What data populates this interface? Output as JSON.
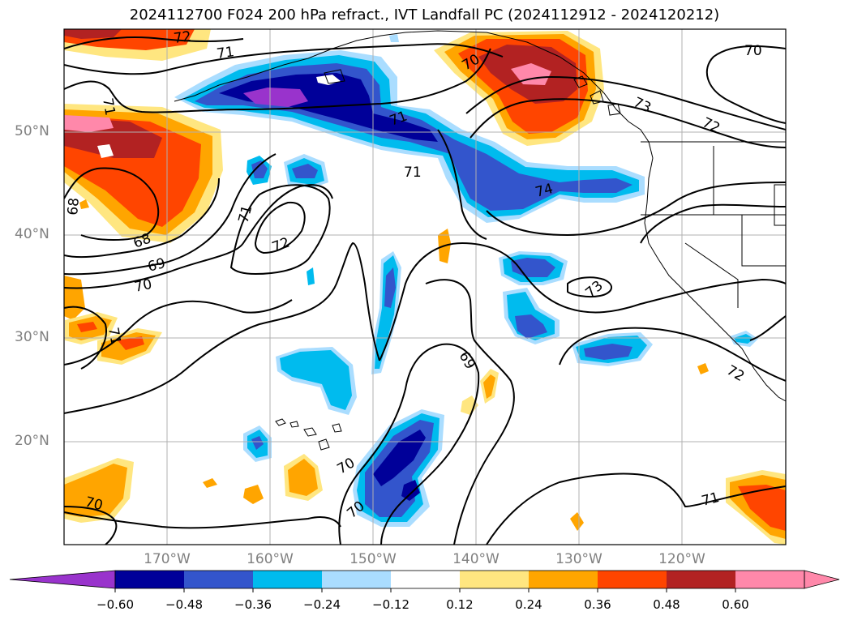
{
  "title": "2024112700 F024 200 hPa refract., IVT Landfall PC (2024112912 - 2024120212)",
  "lat_labels": [
    "50°N",
    "40°N",
    "30°N",
    "20°N"
  ],
  "lon_labels": [
    "170°W",
    "160°W",
    "150°W",
    "140°W",
    "130°W",
    "120°W"
  ],
  "colorbar": {
    "ticks": [
      "−0.60",
      "−0.48",
      "−0.36",
      "−0.24",
      "−0.12",
      "0.12",
      "0.24",
      "0.36",
      "0.48",
      "0.60"
    ],
    "colors": [
      "#9933cc",
      "#000099",
      "#3355cc",
      "#00bbee",
      "#aaddff",
      "#ffffff",
      "#ffe680",
      "#ffa500",
      "#ff4500",
      "#b22222",
      "#ff88aa",
      "#ff88aa"
    ]
  },
  "contour_labels": [
    "72",
    "71",
    "71",
    "70",
    "70",
    "73",
    "72",
    "71",
    "71",
    "74",
    "68",
    "68",
    "71",
    "72",
    "69",
    "70",
    "73",
    "71",
    "69",
    "70",
    "70",
    "70",
    "71",
    "72"
  ],
  "shading_colors": {
    "pos_light": "#ffe680",
    "pos_orange": "#ffa500",
    "pos_red": "#ff4500",
    "pos_dark": "#b22222",
    "pos_pink": "#ff88aa",
    "neg_light": "#aaddff",
    "neg_cyan": "#00bbee",
    "neg_blue": "#3355cc",
    "neg_navy": "#000099",
    "neg_purple": "#9933cc"
  }
}
